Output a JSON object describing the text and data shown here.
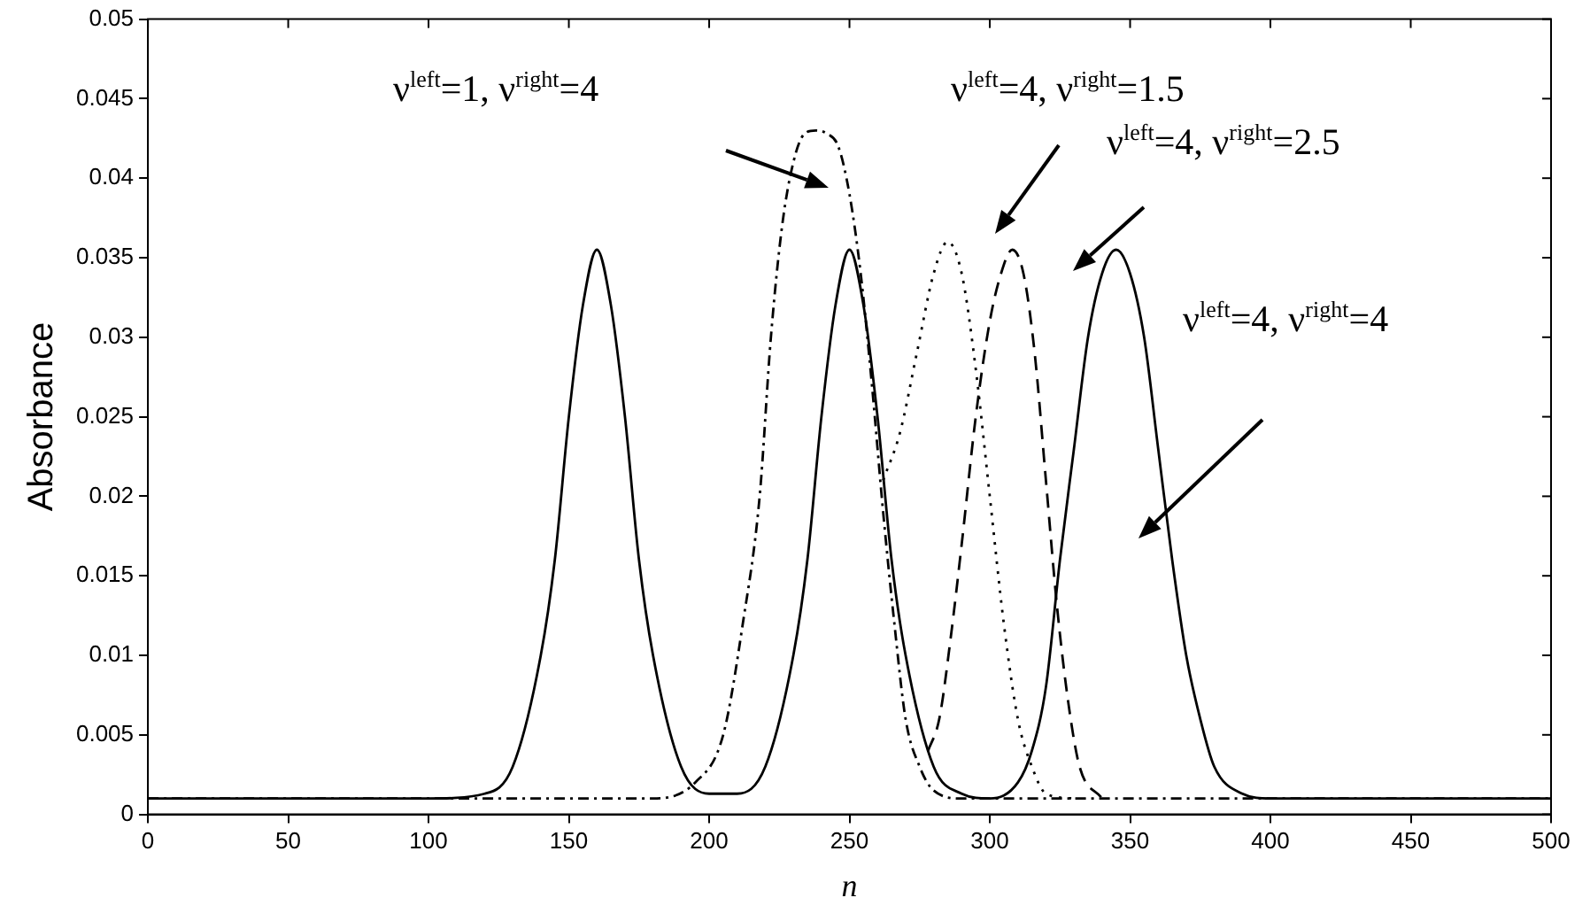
{
  "chart_data": {
    "type": "line",
    "xlabel": "n",
    "ylabel": "Absorbance",
    "xlim": [
      0,
      500
    ],
    "xticks": [
      0,
      50,
      100,
      150,
      200,
      250,
      300,
      350,
      400,
      450,
      500
    ],
    "ylim": [
      0,
      0.05
    ],
    "yticks": [
      0,
      0.005,
      0.01,
      0.015,
      0.02,
      0.025,
      0.03,
      0.035,
      0.04,
      0.045,
      0.05
    ],
    "grid": false,
    "legend": false,
    "marker": "none",
    "series": [
      {
        "color": "#000000",
        "line_style": "solid",
        "x": [
          0,
          100,
          120,
          130,
          140,
          145,
          150,
          155,
          160,
          165,
          170,
          175,
          180,
          190,
          200,
          210,
          220,
          230,
          235,
          240,
          245,
          250,
          255,
          260,
          265,
          270,
          280,
          290,
          300,
          310,
          315,
          320,
          325,
          330,
          335,
          340,
          345,
          350,
          355,
          360,
          365,
          370,
          375,
          380,
          390,
          400,
          500
        ],
        "values": [
          0.001,
          0.001,
          0.0013,
          0.003,
          0.01,
          0.016,
          0.025,
          0.032,
          0.0355,
          0.032,
          0.025,
          0.016,
          0.01,
          0.003,
          0.0013,
          0.0013,
          0.003,
          0.01,
          0.016,
          0.025,
          0.032,
          0.0355,
          0.032,
          0.025,
          0.016,
          0.01,
          0.003,
          0.0013,
          0.001,
          0.002,
          0.004,
          0.008,
          0.016,
          0.023,
          0.03,
          0.034,
          0.0355,
          0.034,
          0.03,
          0.023,
          0.016,
          0.01,
          0.006,
          0.003,
          0.0013,
          0.001,
          0.001
        ]
      },
      {
        "color": "#000000",
        "line_style": "dashdot",
        "x": [
          0,
          180,
          195,
          205,
          212,
          218,
          222,
          226,
          230,
          234,
          238,
          242,
          246,
          250,
          254,
          258,
          262,
          266,
          270,
          275,
          280,
          290,
          500
        ],
        "values": [
          0.001,
          0.001,
          0.002,
          0.005,
          0.012,
          0.02,
          0.03,
          0.037,
          0.041,
          0.0428,
          0.043,
          0.0428,
          0.042,
          0.039,
          0.034,
          0.027,
          0.019,
          0.012,
          0.006,
          0.003,
          0.0015,
          0.001,
          0.001
        ]
      },
      {
        "color": "#000000",
        "line_style": "dotted",
        "x": [
          262,
          268,
          274,
          280,
          285,
          290,
          295,
          300,
          305,
          310,
          315,
          320,
          330
        ],
        "values": [
          0.021,
          0.024,
          0.029,
          0.034,
          0.036,
          0.034,
          0.028,
          0.02,
          0.012,
          0.006,
          0.003,
          0.0013,
          0.001
        ]
      },
      {
        "color": "#000000",
        "line_style": "dashed",
        "x": [
          278,
          282,
          286,
          290,
          295,
          300,
          304,
          308,
          312,
          316,
          320,
          324,
          328,
          332,
          340
        ],
        "values": [
          0.004,
          0.006,
          0.011,
          0.017,
          0.025,
          0.031,
          0.034,
          0.0355,
          0.034,
          0.029,
          0.021,
          0.013,
          0.007,
          0.003,
          0.001
        ]
      }
    ],
    "annotations": [
      "ν$^{left}$=1, ν$^{right}$=4",
      "ν$^{left}$=4, ν$^{right}$=1.5",
      "ν$^{left}$=4, ν$^{right}$=2.5",
      "ν$^{left}$=4, ν$^{right}$=4"
    ]
  }
}
